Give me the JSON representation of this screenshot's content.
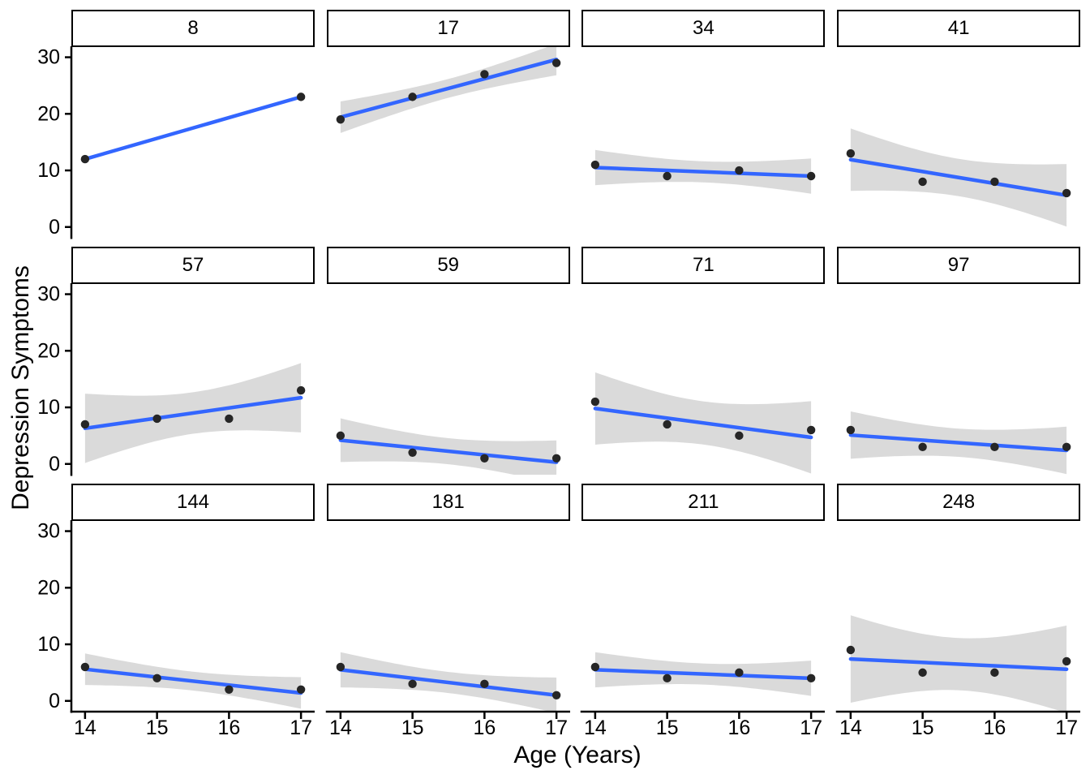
{
  "chart_data": {
    "type": "scatter",
    "subtype": "faceted scatterplots with per-facet linear fit and 95% confidence ribbon",
    "title": "",
    "xlabel": "Age (Years)",
    "ylabel": "Depression Symptoms",
    "x_ticks": [
      14,
      15,
      16,
      17
    ],
    "y_ticks": [
      0,
      10,
      20,
      30
    ],
    "x_domain": [
      13.81,
      17.19
    ],
    "y_domain": [
      -1.9,
      31.8
    ],
    "grid": "off",
    "legend": "none",
    "ncols": 4,
    "nrows": 3,
    "fit": {
      "method": "lm",
      "ci_level": 0.95
    },
    "colors": {
      "line": "#3366FF",
      "ribbon": "#999999",
      "ribbon_opacity": 0.36,
      "point": "#262626",
      "axis": "#000000",
      "strip_border": "#000000",
      "strip_bg": "#FFFFFF",
      "text": "#000000"
    },
    "facets": [
      {
        "label": "8",
        "x": [
          14,
          17
        ],
        "y": [
          12,
          23
        ]
      },
      {
        "label": "17",
        "x": [
          14,
          15,
          16,
          17
        ],
        "y": [
          19,
          23,
          27,
          29
        ]
      },
      {
        "label": "34",
        "x": [
          14,
          15,
          16,
          17
        ],
        "y": [
          11,
          9,
          10,
          9
        ]
      },
      {
        "label": "41",
        "x": [
          14,
          15,
          16,
          17
        ],
        "y": [
          13,
          8,
          8,
          6
        ]
      },
      {
        "label": "57",
        "x": [
          14,
          15,
          16,
          17
        ],
        "y": [
          7,
          8,
          8,
          13
        ]
      },
      {
        "label": "59",
        "x": [
          14,
          15,
          16,
          17
        ],
        "y": [
          5,
          2,
          1,
          1
        ]
      },
      {
        "label": "71",
        "x": [
          14,
          15,
          16,
          17
        ],
        "y": [
          11,
          7,
          5,
          6
        ]
      },
      {
        "label": "97",
        "x": [
          14,
          15,
          16,
          17
        ],
        "y": [
          6,
          3,
          3,
          3
        ]
      },
      {
        "label": "144",
        "x": [
          14,
          15,
          16,
          17
        ],
        "y": [
          6,
          4,
          2,
          2
        ]
      },
      {
        "label": "181",
        "x": [
          14,
          15,
          16,
          17
        ],
        "y": [
          6,
          3,
          3,
          1
        ]
      },
      {
        "label": "211",
        "x": [
          14,
          15,
          16,
          17
        ],
        "y": [
          6,
          4,
          5,
          4
        ]
      },
      {
        "label": "248",
        "x": [
          14,
          15,
          16,
          17
        ],
        "y": [
          9,
          5,
          5,
          7
        ]
      }
    ]
  }
}
